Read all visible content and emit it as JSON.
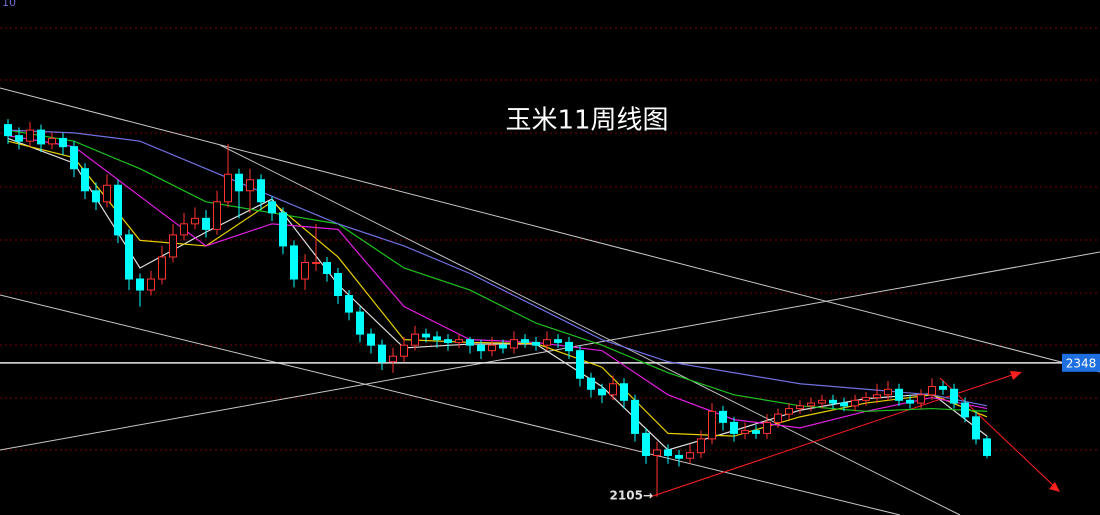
{
  "chart_data": {
    "type": "candlestick",
    "title": "玉米11周线图",
    "corner_label": "10",
    "ylim": [
      2072,
      3006
    ],
    "up_color": "#ff3232",
    "down_color": "#00ffff",
    "candles": [
      [
        2780,
        2790,
        2745,
        2760
      ],
      [
        2760,
        2775,
        2735,
        2750
      ],
      [
        2750,
        2785,
        2740,
        2770
      ],
      [
        2770,
        2780,
        2730,
        2745
      ],
      [
        2745,
        2765,
        2735,
        2755
      ],
      [
        2755,
        2765,
        2725,
        2740
      ],
      [
        2740,
        2750,
        2685,
        2700
      ],
      [
        2700,
        2710,
        2645,
        2660
      ],
      [
        2660,
        2675,
        2625,
        2640
      ],
      [
        2640,
        2690,
        2630,
        2670
      ],
      [
        2670,
        2680,
        2565,
        2580
      ],
      [
        2580,
        2590,
        2480,
        2500
      ],
      [
        2500,
        2510,
        2450,
        2480
      ],
      [
        2480,
        2515,
        2470,
        2500
      ],
      [
        2500,
        2560,
        2490,
        2540
      ],
      [
        2540,
        2600,
        2530,
        2580
      ],
      [
        2580,
        2620,
        2570,
        2600
      ],
      [
        2600,
        2630,
        2590,
        2610
      ],
      [
        2610,
        2625,
        2575,
        2590
      ],
      [
        2590,
        2660,
        2580,
        2640
      ],
      [
        2640,
        2745,
        2630,
        2690
      ],
      [
        2690,
        2700,
        2610,
        2660
      ],
      [
        2660,
        2700,
        2620,
        2680
      ],
      [
        2680,
        2690,
        2625,
        2640
      ],
      [
        2640,
        2650,
        2605,
        2620
      ],
      [
        2620,
        2630,
        2545,
        2560
      ],
      [
        2560,
        2570,
        2485,
        2500
      ],
      [
        2500,
        2545,
        2480,
        2530
      ],
      [
        2530,
        2600,
        2515,
        2530
      ],
      [
        2530,
        2540,
        2495,
        2510
      ],
      [
        2510,
        2520,
        2455,
        2470
      ],
      [
        2470,
        2480,
        2425,
        2440
      ],
      [
        2440,
        2450,
        2385,
        2400
      ],
      [
        2400,
        2410,
        2365,
        2380
      ],
      [
        2380,
        2390,
        2335,
        2350
      ],
      [
        2350,
        2375,
        2330,
        2360
      ],
      [
        2360,
        2395,
        2350,
        2380
      ],
      [
        2380,
        2415,
        2370,
        2400
      ],
      [
        2400,
        2410,
        2385,
        2395
      ],
      [
        2395,
        2405,
        2375,
        2390
      ],
      [
        2390,
        2400,
        2370,
        2385
      ],
      [
        2385,
        2400,
        2375,
        2390
      ],
      [
        2390,
        2395,
        2365,
        2380
      ],
      [
        2380,
        2390,
        2355,
        2370
      ],
      [
        2370,
        2395,
        2360,
        2380
      ],
      [
        2380,
        2390,
        2365,
        2375
      ],
      [
        2375,
        2405,
        2365,
        2390
      ],
      [
        2390,
        2400,
        2375,
        2385
      ],
      [
        2385,
        2395,
        2370,
        2380
      ],
      [
        2380,
        2405,
        2370,
        2390
      ],
      [
        2390,
        2400,
        2375,
        2385
      ],
      [
        2385,
        2395,
        2355,
        2370
      ],
      [
        2370,
        2380,
        2305,
        2320
      ],
      [
        2320,
        2330,
        2285,
        2300
      ],
      [
        2300,
        2310,
        2275,
        2290
      ],
      [
        2290,
        2325,
        2280,
        2310
      ],
      [
        2310,
        2320,
        2265,
        2280
      ],
      [
        2280,
        2290,
        2205,
        2220
      ],
      [
        2220,
        2230,
        2165,
        2180
      ],
      [
        2180,
        2205,
        2105,
        2190
      ],
      [
        2190,
        2200,
        2165,
        2180
      ],
      [
        2180,
        2190,
        2160,
        2175
      ],
      [
        2175,
        2200,
        2165,
        2185
      ],
      [
        2185,
        2225,
        2175,
        2210
      ],
      [
        2210,
        2275,
        2200,
        2260
      ],
      [
        2260,
        2270,
        2225,
        2240
      ],
      [
        2240,
        2250,
        2205,
        2220
      ],
      [
        2220,
        2240,
        2210,
        2225
      ],
      [
        2225,
        2235,
        2210,
        2220
      ],
      [
        2220,
        2255,
        2210,
        2240
      ],
      [
        2240,
        2265,
        2230,
        2255
      ],
      [
        2255,
        2275,
        2245,
        2265
      ],
      [
        2265,
        2280,
        2255,
        2270
      ],
      [
        2270,
        2285,
        2260,
        2275
      ],
      [
        2275,
        2290,
        2265,
        2280
      ],
      [
        2280,
        2290,
        2265,
        2275
      ],
      [
        2275,
        2285,
        2260,
        2270
      ],
      [
        2270,
        2290,
        2260,
        2280
      ],
      [
        2280,
        2295,
        2270,
        2285
      ],
      [
        2285,
        2310,
        2275,
        2290
      ],
      [
        2290,
        2315,
        2280,
        2300
      ],
      [
        2300,
        2310,
        2270,
        2280
      ],
      [
        2280,
        2290,
        2265,
        2275
      ],
      [
        2275,
        2300,
        2265,
        2290
      ],
      [
        2290,
        2320,
        2280,
        2305
      ],
      [
        2305,
        2315,
        2290,
        2300
      ],
      [
        2300,
        2310,
        2265,
        2275
      ],
      [
        2275,
        2285,
        2240,
        2250
      ],
      [
        2250,
        2260,
        2200,
        2210
      ],
      [
        2210,
        2215,
        2175,
        2180
      ]
    ],
    "moving_averages": [
      {
        "color": "#e0e0e0",
        "x": [
          0,
          6,
          12,
          18,
          24,
          30,
          36,
          42,
          48,
          54,
          60,
          66,
          72,
          78,
          84,
          89
        ],
        "values": [
          2755,
          2710,
          2520,
          2585,
          2645,
          2490,
          2375,
          2382,
          2382,
          2305,
          2190,
          2225,
          2262,
          2283,
          2292,
          2215
        ]
      },
      {
        "color": "#e8d000",
        "x": [
          0,
          6,
          12,
          18,
          24,
          30,
          36,
          42,
          48,
          54,
          60,
          66,
          72,
          78,
          84,
          89
        ],
        "values": [
          2750,
          2720,
          2570,
          2560,
          2640,
          2540,
          2390,
          2385,
          2383,
          2340,
          2220,
          2215,
          2250,
          2275,
          2290,
          2250
        ]
      },
      {
        "color": "#e020e0",
        "x": [
          0,
          6,
          12,
          18,
          24,
          30,
          36,
          42,
          48,
          54,
          60,
          66,
          72,
          78,
          84,
          89
        ],
        "values": [
          2760,
          2740,
          2650,
          2560,
          2600,
          2590,
          2450,
          2390,
          2385,
          2370,
          2290,
          2245,
          2230,
          2260,
          2285,
          2265
        ]
      },
      {
        "color": "#20c020",
        "x": [
          0,
          6,
          12,
          18,
          24,
          30,
          36,
          42,
          48,
          54,
          60,
          66,
          72,
          78,
          84,
          89
        ],
        "values": [
          2770,
          2750,
          2700,
          2640,
          2620,
          2600,
          2520,
          2480,
          2420,
          2380,
          2330,
          2290,
          2270,
          2260,
          2265,
          2260
        ]
      },
      {
        "color": "#7070e0",
        "x": [
          0,
          6,
          12,
          18,
          24,
          30,
          36,
          42,
          48,
          54,
          60,
          66,
          72,
          78,
          84,
          89
        ],
        "values": [
          2770,
          2765,
          2750,
          2700,
          2650,
          2600,
          2560,
          2510,
          2450,
          2390,
          2350,
          2330,
          2310,
          2300,
          2290,
          2270
        ]
      }
    ],
    "price_line": {
      "value": 2348,
      "label": "2348"
    },
    "low_annotation": {
      "index": 59,
      "value": 2105,
      "text": "2105→"
    }
  }
}
